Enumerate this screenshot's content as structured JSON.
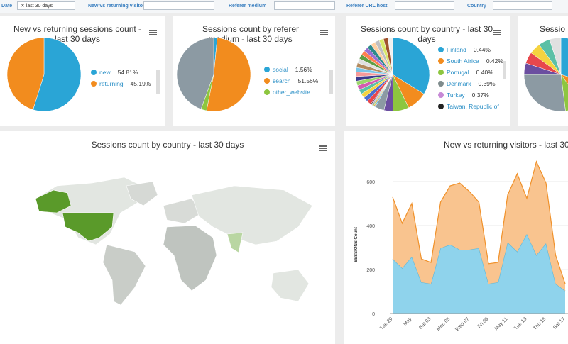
{
  "filters": [
    {
      "label": "Date",
      "chip": "last 30 days"
    },
    {
      "label": "New vs returning visitors"
    },
    {
      "label": "Referer medium"
    },
    {
      "label": "Referer URL host"
    },
    {
      "label": "Country"
    }
  ],
  "pies": [
    {
      "title": "New vs returning sessions count - last 30 days",
      "slices": [
        {
          "name": "new",
          "value": 54.81,
          "value_label": "54.81%",
          "color": "#2aa5d6"
        },
        {
          "name": "returning",
          "value": 45.19,
          "value_label": "45.19%",
          "color": "#f28c1e"
        }
      ]
    },
    {
      "title": "Sessions count by referer medium - last 30 days",
      "slices": [
        {
          "name": "social",
          "value": 1.56,
          "value_label": "1.56%",
          "color": "#2aa5d6"
        },
        {
          "name": "search",
          "value": 51.56,
          "value_label": "51.56%",
          "color": "#f28c1e"
        },
        {
          "name": "other_website",
          "value": 2.5,
          "color": "#8dc63f"
        },
        {
          "value": 44.38,
          "color": "#8c9aa3"
        }
      ]
    },
    {
      "title": "Sessions count by country - last 30 days",
      "slices": [
        {
          "value": 34,
          "color": "#2aa5d6"
        },
        {
          "value": 9,
          "color": "#f28c1e"
        },
        {
          "value": 7,
          "color": "#8dc63f"
        },
        {
          "value": 4,
          "color": "#6b4ea0"
        },
        {
          "value": 4,
          "color": "#8c9aa3"
        },
        {
          "name": "Finland",
          "value": 0.44,
          "value_label": "0.44%",
          "color": "#2aa5d6"
        },
        {
          "name": "South Africa",
          "value": 0.42,
          "value_label": "0.42%",
          "color": "#f28c1e"
        },
        {
          "name": "Portugal",
          "value": 0.4,
          "value_label": "0.40%",
          "color": "#8dc63f"
        },
        {
          "name": "Denmark",
          "value": 0.39,
          "value_label": "0.39%",
          "color": "#7f8c8d"
        },
        {
          "name": "Turkey",
          "value": 0.37,
          "value_label": "0.37%",
          "color": "#c78ad6"
        },
        {
          "name": "Taiwan, Republic of",
          "value": 0.36,
          "color": "#222222"
        },
        {
          "value": 2,
          "color": "#e8474c"
        },
        {
          "value": 2,
          "color": "#4c6fd1"
        },
        {
          "value": 2,
          "color": "#f5d33f"
        },
        {
          "value": 2,
          "color": "#5bc0a6"
        },
        {
          "value": 2,
          "color": "#d45ab0"
        },
        {
          "value": 2,
          "color": "#9bd46b"
        },
        {
          "value": 2,
          "color": "#3b3b8f"
        },
        {
          "value": 2,
          "color": "#f59a9a"
        },
        {
          "value": 2,
          "color": "#7ac5e8"
        },
        {
          "value": 2,
          "color": "#b38a5e"
        },
        {
          "value": 2,
          "color": "#e0e0e0"
        },
        {
          "value": 2,
          "color": "#5e9e44"
        },
        {
          "value": 2,
          "color": "#ff7f50"
        },
        {
          "value": 2,
          "color": "#9a6fd1"
        },
        {
          "value": 2,
          "color": "#2d8a8a"
        },
        {
          "value": 2,
          "color": "#ffd0a0"
        },
        {
          "value": 2,
          "color": "#c0c0c0"
        },
        {
          "value": 2,
          "color": "#d9e96a"
        },
        {
          "value": 2,
          "color": "#a0522d"
        },
        {
          "value": 2,
          "color": "#f0f0f0"
        }
      ]
    },
    {
      "title": "Sessio",
      "slices": [
        {
          "value": 30,
          "color": "#2aa5d6"
        },
        {
          "value": 10,
          "color": "#f28c1e"
        },
        {
          "value": 8,
          "color": "#8dc63f"
        },
        {
          "value": 27,
          "color": "#8c9aa3"
        },
        {
          "value": 5,
          "color": "#6b4ea0"
        },
        {
          "value": 5,
          "color": "#e8474c"
        },
        {
          "value": 5,
          "color": "#f5d33f"
        },
        {
          "value": 5,
          "color": "#5bc0a6"
        },
        {
          "value": 5,
          "color": "#e0e0e0"
        }
      ]
    }
  ],
  "map": {
    "title": "Sessions count by country - last 30 days"
  },
  "chart_data": {
    "type": "area",
    "title": "New vs returning visitors - last 30",
    "y_label": "SESSIONS Count",
    "stacked": true,
    "categories": [
      "Tue 29",
      null,
      "May",
      null,
      "Sat 03",
      null,
      "Mon 05",
      null,
      "Wed 07",
      null,
      "Fri 09",
      null,
      "May 11",
      null,
      "Tue 13",
      null,
      "Thu 15",
      null,
      "Sat 17"
    ],
    "ylim": [
      0,
      680
    ],
    "yticks": [
      0,
      200,
      400,
      600
    ],
    "series": [
      {
        "color": "#8fd3ec",
        "values": [
          248,
          206,
          258,
          142,
          135,
          297,
          313,
          290,
          290,
          297,
          135,
          142,
          323,
          281,
          361,
          265,
          319,
          135,
          103
        ]
      },
      {
        "color": "#f9c48f",
        "values": [
          281,
          204,
          242,
          106,
          97,
          209,
          267,
          303,
          265,
          209,
          91,
          90,
          216,
          354,
          162,
          425,
          274,
          130,
          32
        ]
      }
    ]
  }
}
